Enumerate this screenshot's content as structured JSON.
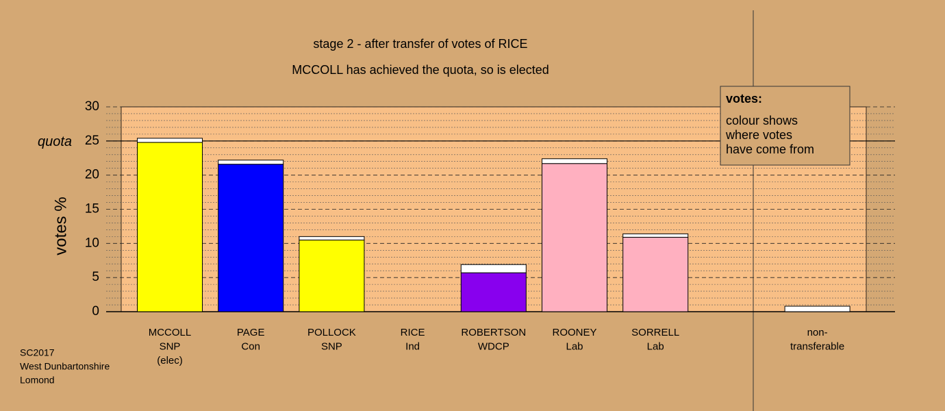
{
  "chart_data": {
    "type": "stacked-bar",
    "title": "stage 2 - after transfer of votes of RICE",
    "subtitle": "MCCOLL has achieved the quota, so is elected",
    "y_label": "votes %",
    "categories": [
      [
        "MCCOLL",
        "SNP",
        "(elec)"
      ],
      [
        "PAGE",
        "Con"
      ],
      [
        "POLLOCK",
        "SNP"
      ],
      [
        "RICE",
        "Ind"
      ],
      [
        "ROBERTSON",
        "WDCP"
      ],
      [
        "ROONEY",
        "Lab"
      ],
      [
        "SORRELL",
        "Lab"
      ],
      [
        "non-",
        "transferable"
      ]
    ],
    "series": [
      {
        "colors": [
          "#ffff00",
          "#0000ff",
          "#ffff00",
          "#c0c0c0",
          "#8800ee",
          "#ffb0c0",
          "#ffb0c0",
          "#ffffff"
        ],
        "values": [
          24.8,
          21.6,
          10.5,
          0,
          5.7,
          21.7,
          10.9,
          0
        ]
      },
      {
        "color": "#ffffff",
        "values": [
          0.6,
          0.6,
          0.5,
          0,
          1.2,
          0.7,
          0.5,
          0.8
        ]
      }
    ],
    "ylim": [
      0,
      30
    ],
    "yticks": [
      0,
      5,
      10,
      15,
      20,
      25,
      30
    ],
    "minor_yticks": [
      1,
      2,
      3,
      4,
      6,
      7,
      8,
      9,
      11,
      12,
      13,
      14,
      16,
      17,
      18,
      19,
      21,
      22,
      23,
      24,
      26,
      27,
      28,
      29
    ],
    "grid": true,
    "quota": {
      "label": "quota",
      "value": 25
    },
    "legend_note": {
      "title": "votes:",
      "lines": [
        "colour shows",
        "where votes",
        "have come from"
      ]
    },
    "footnote": [
      "SC2017",
      "West Dunbartonshire",
      "Lomond"
    ]
  }
}
